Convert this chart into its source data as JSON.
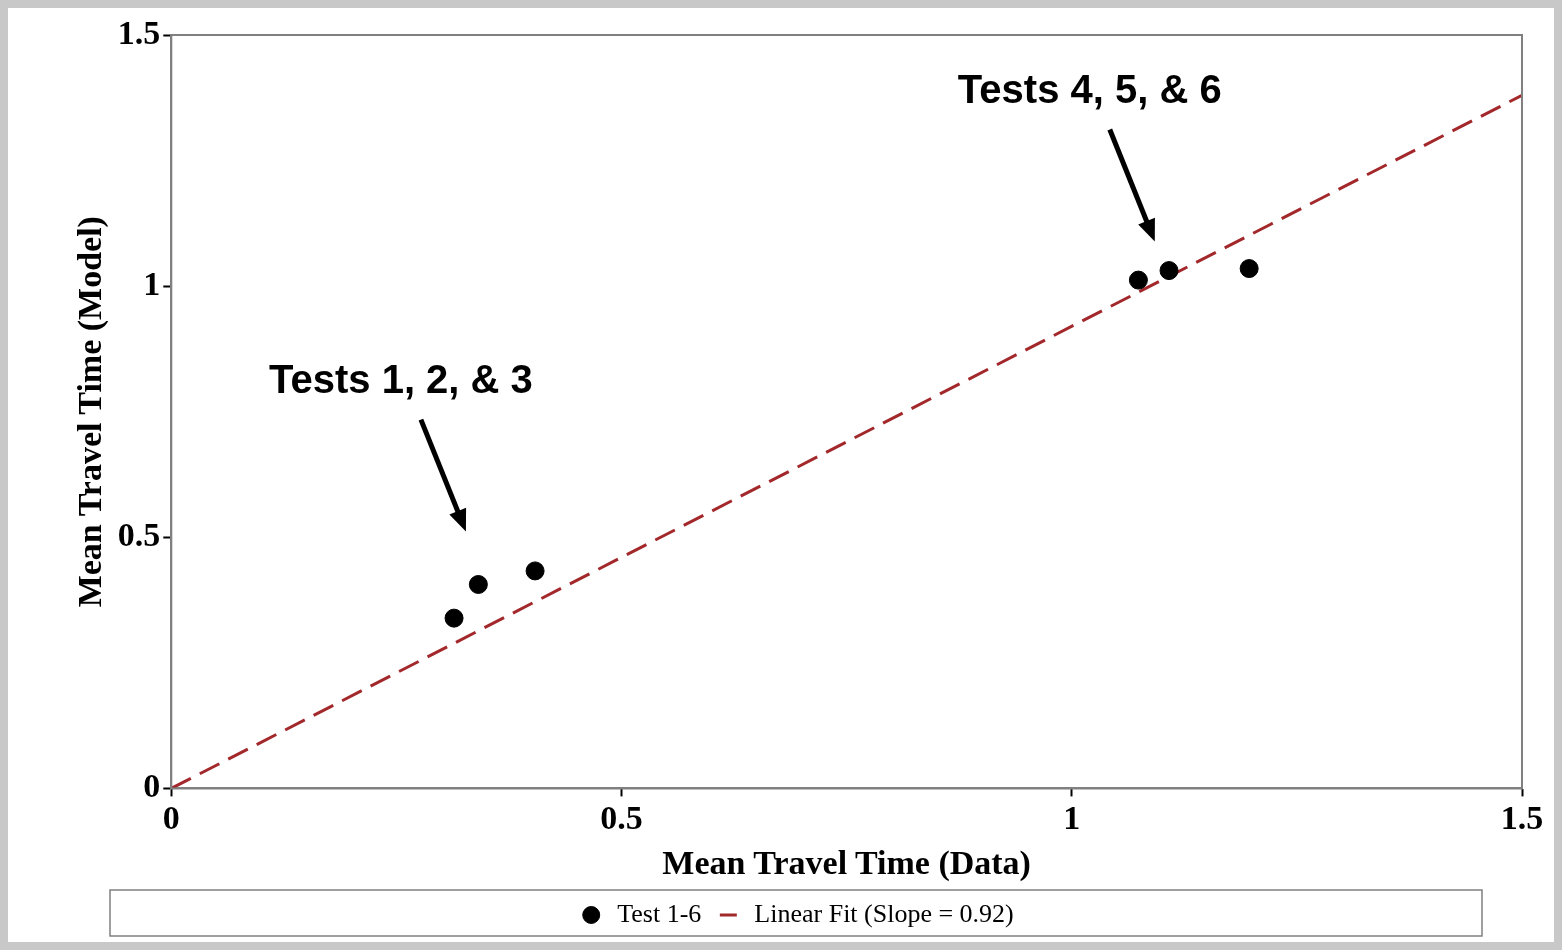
{
  "chart_data": {
    "type": "scatter",
    "xlabel": "Mean Travel Time (Data)",
    "ylabel": "Mean Travel Time (Model)",
    "xlim": [
      0,
      1.5
    ],
    "xticks": [
      0,
      0.5,
      1,
      1.5
    ],
    "ylim": [
      0,
      1.5
    ],
    "yticks": [
      0,
      0.5,
      1,
      1.5
    ],
    "grid": false,
    "legend": "bottom",
    "marker": "circle",
    "series": [
      {
        "name": "Test 1-6",
        "color": "#000000",
        "x": [
          0.314,
          0.341,
          0.404,
          1.074,
          1.108,
          1.197
        ],
        "values": [
          0.339,
          0.406,
          0.433,
          1.012,
          1.031,
          1.035
        ]
      },
      {
        "name": "Linear Fit (Slope = 0.92)",
        "type": "line",
        "color": "#a3282b",
        "line_style": "dashed",
        "marker": "none",
        "x": [
          0,
          1.5
        ],
        "values": [
          0,
          1.38
        ]
      }
    ],
    "annotations": [
      "Tests 1, 2, & 3",
      "Tests 4, 5, & 6"
    ]
  }
}
